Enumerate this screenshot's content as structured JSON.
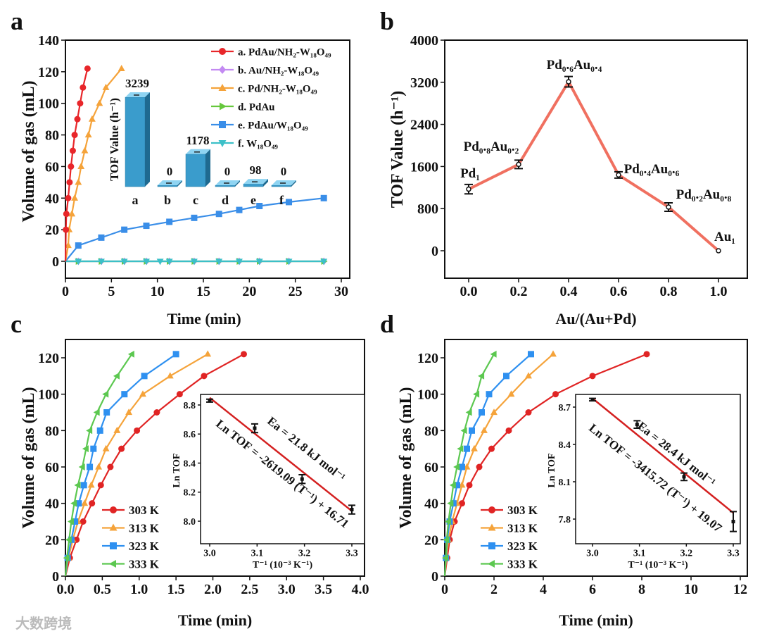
{
  "panel_letters": [
    "a",
    "b",
    "c",
    "d"
  ],
  "watermark": "大数跨境",
  "colors": {
    "red": "#e8262a",
    "purple": "#c38af2",
    "orange": "#f5a33a",
    "green": "#66c83c",
    "blue": "#3a8ee8",
    "teal": "#3cc0c8",
    "b_line": "#f07060"
  },
  "chart_data": [
    {
      "id": "a",
      "type": "line",
      "xlabel": "Time (min)",
      "ylabel": "Volume of gas (mL)",
      "xlim": [
        0,
        30
      ],
      "ylim": [
        -10,
        140
      ],
      "xticks": [
        "0",
        "5",
        "10",
        "15",
        "20",
        "25",
        "30"
      ],
      "yticks": [
        "0",
        "20",
        "40",
        "60",
        "80",
        "100",
        "120",
        "140"
      ],
      "legend_position": "top-right",
      "series": [
        {
          "name": "a. PdAu/NH₂-W₁₈O₄₉",
          "color": "#e8262a",
          "marker": "circle",
          "x": [
            0,
            0.05,
            0.1,
            0.3,
            0.45,
            0.6,
            0.8,
            1.0,
            1.3,
            1.6,
            1.9,
            2.4
          ],
          "y": [
            0,
            20,
            30,
            40,
            50,
            60,
            70,
            80,
            90,
            100,
            110,
            122
          ]
        },
        {
          "name": "b. Au/NH₂-W₁₈O₄₉",
          "color": "#c38af2",
          "marker": "diamond",
          "x": [
            0,
            1.4,
            3.9,
            6.4,
            8.8,
            11.3,
            14,
            16.7,
            18.9,
            21.1,
            24.3,
            28.1
          ],
          "y": [
            0,
            0,
            0,
            0,
            0,
            0,
            0,
            0,
            0,
            0,
            0,
            0
          ]
        },
        {
          "name": "c. Pd/NH₂-W₁₈O₄₉",
          "color": "#f5a33a",
          "marker": "triangle-up",
          "x": [
            0,
            0.3,
            0.4,
            0.7,
            1.0,
            1.4,
            1.7,
            2.1,
            2.5,
            2.9,
            3.7,
            4.4,
            6.1
          ],
          "y": [
            0,
            10,
            20,
            30,
            40,
            50,
            60,
            70,
            80,
            90,
            100,
            110,
            122
          ]
        },
        {
          "name": "d. PdAu",
          "color": "#66c83c",
          "marker": "triangle-right",
          "x": [
            0,
            1.4,
            3.9,
            6.4,
            8.8,
            11.3,
            14,
            16.7,
            18.9,
            21.1,
            24.3,
            28.1
          ],
          "y": [
            0,
            0,
            0,
            0,
            0,
            0,
            0,
            0,
            0,
            0,
            0,
            0
          ]
        },
        {
          "name": "e. PdAu/W₁₈O₄₉",
          "color": "#3a8ee8",
          "marker": "square",
          "x": [
            0,
            1.4,
            3.9,
            6.4,
            8.8,
            11.3,
            14,
            16.7,
            18.9,
            21.1,
            24.3,
            28.1
          ],
          "y": [
            0,
            10,
            15,
            20,
            22.5,
            25,
            27.5,
            30,
            32.5,
            35,
            37.5,
            40
          ]
        },
        {
          "name": "f. W₁₈O₄₉",
          "color": "#3cc0c8",
          "marker": "triangle-down",
          "x": [
            0,
            1.4,
            3.9,
            6.4,
            8.8,
            10.3,
            11.3,
            14,
            16.7,
            18.9,
            21.1,
            24.3,
            28.1
          ],
          "y": [
            0,
            0,
            0,
            0,
            0,
            0,
            0,
            0,
            0,
            0,
            0,
            0,
            0
          ]
        }
      ],
      "inset": {
        "type": "bar",
        "ylabel": "TOF Value (h⁻¹)",
        "categories": [
          "a",
          "b",
          "c",
          "d",
          "e",
          "f"
        ],
        "values": [
          3239,
          0,
          1178,
          0,
          98,
          0
        ],
        "value_labels": [
          "3239",
          "0",
          "1178",
          "0",
          "98",
          "0"
        ]
      }
    },
    {
      "id": "b",
      "type": "line",
      "xlabel": "Au/(Au+Pd)",
      "ylabel": "TOF Value (h⁻¹)",
      "xlim": [
        -0.1,
        1.1
      ],
      "ylim": [
        -400,
        4000
      ],
      "xticks": [
        "0.0",
        "0.2",
        "0.4",
        "0.6",
        "0.8",
        "1.0"
      ],
      "yticks": [
        "0",
        "800",
        "1600",
        "2400",
        "3200",
        "4000"
      ],
      "x": [
        0,
        0.2,
        0.4,
        0.6,
        0.8,
        1.0
      ],
      "y": [
        1170,
        1640,
        3210,
        1440,
        830,
        0
      ],
      "error": [
        90,
        80,
        100,
        60,
        80,
        0
      ],
      "point_labels": [
        "Pd₁",
        "Pd₀.₈Au₀.₂",
        "Pd₀.₆Au₀.₄",
        "Pd₀.₄Au₀.₆",
        "Pd₀.₂Au₀.₈",
        "Au₁"
      ]
    },
    {
      "id": "c",
      "type": "line",
      "xlabel": "Time (min)",
      "ylabel": "Volume of gas (mL)",
      "xlim": [
        0,
        4
      ],
      "ylim": [
        0,
        130
      ],
      "xticks": [
        "0.0",
        "0.5",
        "1.0",
        "1.5",
        "2.0",
        "2.5",
        "3.0",
        "3.5",
        "4.0"
      ],
      "yticks": [
        "0",
        "20",
        "40",
        "60",
        "80",
        "100",
        "120"
      ],
      "legend_position": "bottom-left",
      "series": [
        {
          "name": "303 K",
          "color": "#e02424",
          "marker": "circle",
          "x": [
            0,
            0.06,
            0.15,
            0.24,
            0.36,
            0.48,
            0.61,
            0.76,
            0.97,
            1.24,
            1.55,
            1.88,
            2.42
          ],
          "y": [
            0,
            10,
            20,
            30,
            40,
            50,
            60,
            70,
            80,
            90,
            100,
            110,
            122
          ]
        },
        {
          "name": "313 K",
          "color": "#f5a33a",
          "marker": "triangle-up",
          "x": [
            0,
            0.04,
            0.1,
            0.17,
            0.26,
            0.35,
            0.45,
            0.55,
            0.7,
            0.86,
            1.05,
            1.42,
            1.93
          ],
          "y": [
            0,
            10,
            20,
            30,
            40,
            50,
            60,
            70,
            80,
            90,
            100,
            110,
            122
          ]
        },
        {
          "name": "323 K",
          "color": "#2e90f0",
          "marker": "square",
          "x": [
            0,
            0.03,
            0.08,
            0.13,
            0.18,
            0.25,
            0.33,
            0.38,
            0.47,
            0.56,
            0.8,
            1.07,
            1.5
          ],
          "y": [
            0,
            10,
            20,
            30,
            40,
            50,
            60,
            70,
            80,
            90,
            100,
            110,
            122
          ]
        },
        {
          "name": "333 K",
          "color": "#5cc850",
          "marker": "triangle-left",
          "x": [
            0,
            0.02,
            0.05,
            0.08,
            0.12,
            0.17,
            0.23,
            0.28,
            0.33,
            0.43,
            0.55,
            0.7,
            0.9
          ],
          "y": [
            0,
            10,
            20,
            30,
            40,
            50,
            60,
            70,
            80,
            90,
            100,
            110,
            122
          ]
        }
      ],
      "inset": {
        "type": "scatter",
        "xlabel": "T⁻¹ (10⁻³ K⁻¹)",
        "ylabel": "Ln TOF",
        "xlim": [
          2.97,
          3.31
        ],
        "ylim": [
          7.9,
          8.86
        ],
        "xticks": [
          "3.0",
          "3.1",
          "3.2",
          "3.3"
        ],
        "yticks": [
          "8.0",
          "8.2",
          "8.4",
          "8.6",
          "8.8"
        ],
        "x": [
          3.0,
          3.095,
          3.195,
          3.3
        ],
        "y": [
          8.83,
          8.64,
          8.29,
          8.08
        ],
        "error": [
          0.01,
          0.03,
          0.03,
          0.03
        ],
        "fit": {
          "x": [
            3.0,
            3.3
          ],
          "y": [
            8.85,
            8.07
          ]
        },
        "annotations": [
          "Ea = 21.8 kJ mol⁻¹",
          "Ln TOF = -2619.09 (T⁻¹) + 16.71"
        ]
      }
    },
    {
      "id": "d",
      "type": "line",
      "xlabel": "Time (min)",
      "ylabel": "Volume of gas (mL)",
      "xlim": [
        0,
        12
      ],
      "ylim": [
        0,
        130
      ],
      "xticks": [
        "0",
        "2",
        "4",
        "6",
        "8",
        "10",
        "12"
      ],
      "yticks": [
        "0",
        "20",
        "40",
        "60",
        "80",
        "100",
        "120"
      ],
      "legend_position": "bottom-left",
      "series": [
        {
          "name": "303 K",
          "color": "#e02424",
          "marker": "circle",
          "x": [
            0,
            0.1,
            0.2,
            0.4,
            0.7,
            1.0,
            1.4,
            1.9,
            2.6,
            3.4,
            4.5,
            6.0,
            8.2
          ],
          "y": [
            0,
            10,
            20,
            30,
            40,
            50,
            60,
            70,
            80,
            90,
            100,
            110,
            122
          ]
        },
        {
          "name": "313 K",
          "color": "#f5a33a",
          "marker": "triangle-up",
          "x": [
            0,
            0.07,
            0.15,
            0.3,
            0.5,
            0.7,
            0.9,
            1.2,
            1.6,
            2.0,
            2.7,
            3.4,
            4.4
          ],
          "y": [
            0,
            10,
            20,
            30,
            40,
            50,
            60,
            70,
            80,
            90,
            100,
            110,
            122
          ]
        },
        {
          "name": "323 K",
          "color": "#2e90f0",
          "marker": "square",
          "x": [
            0,
            0.05,
            0.1,
            0.2,
            0.35,
            0.5,
            0.7,
            0.9,
            1.1,
            1.5,
            1.8,
            2.5,
            3.5
          ],
          "y": [
            0,
            10,
            20,
            30,
            40,
            50,
            60,
            70,
            80,
            90,
            100,
            110,
            122
          ]
        },
        {
          "name": "333 K",
          "color": "#5cc850",
          "marker": "triangle-left",
          "x": [
            0,
            0.04,
            0.08,
            0.15,
            0.25,
            0.35,
            0.5,
            0.65,
            0.8,
            1.0,
            1.3,
            1.5,
            2.0
          ],
          "y": [
            0,
            10,
            20,
            30,
            40,
            50,
            60,
            70,
            80,
            90,
            100,
            110,
            122
          ]
        }
      ],
      "inset": {
        "type": "scatter",
        "xlabel": "T⁻¹ (10⁻³ K⁻¹)",
        "ylabel": "Ln TOF",
        "xlim": [
          2.97,
          3.31
        ],
        "ylim": [
          7.6,
          8.8
        ],
        "xticks": [
          "3.0",
          "3.1",
          "3.2",
          "3.3"
        ],
        "yticks": [
          "7.8",
          "8.1",
          "8.4",
          "8.7"
        ],
        "x": [
          3.0,
          3.095,
          3.195,
          3.3
        ],
        "y": [
          8.76,
          8.56,
          8.14,
          7.78
        ],
        "error": [
          0.01,
          0.03,
          0.03,
          0.08
        ],
        "fit": {
          "x": [
            3.0,
            3.3
          ],
          "y": [
            8.77,
            7.85
          ]
        },
        "annotations": [
          "Ea = 28.4 kJ mol⁻¹",
          "Ln TOF = -3415.72 (T⁻¹) + 19.07"
        ]
      }
    }
  ]
}
